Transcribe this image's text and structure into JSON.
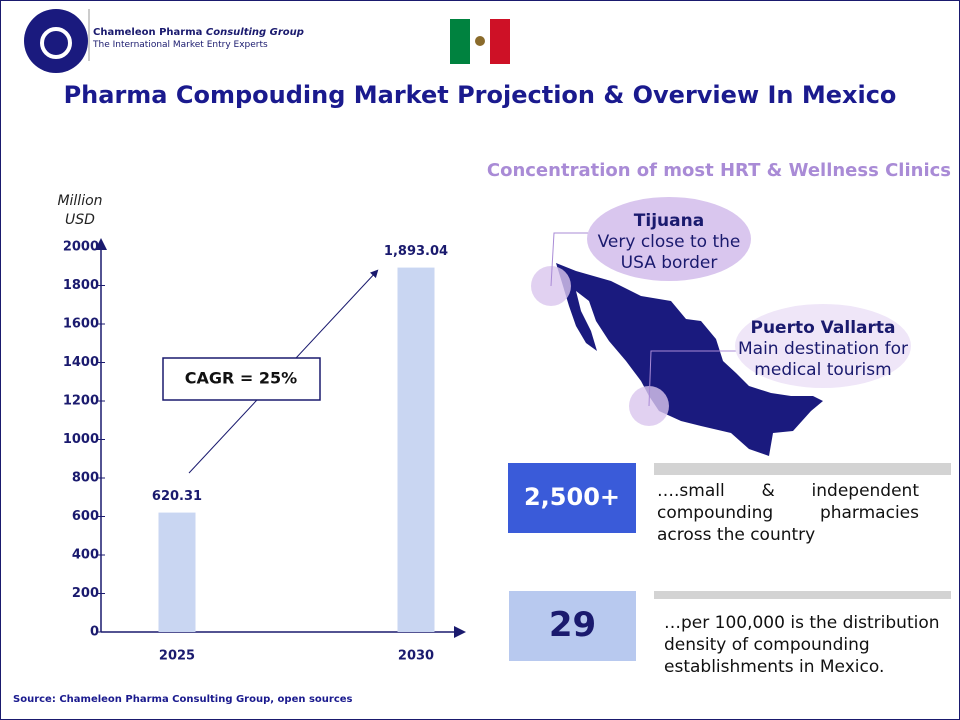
{
  "header": {
    "company": "Chameleon Pharma",
    "company_suffix": "Consulting Group",
    "tagline": "The International Market Entry Experts",
    "title": "Pharma Compouding Market Projection & Overview In Mexico"
  },
  "chart_data": {
    "type": "bar",
    "y_label": "Million USD",
    "categories": [
      "2025",
      "2030"
    ],
    "values": [
      620.31,
      1893.04
    ],
    "value_labels": [
      "620.31",
      "1,893.04"
    ],
    "color": "#c9d6f2",
    "ylim": [
      0,
      2000
    ],
    "yticks": [
      0,
      200,
      400,
      600,
      800,
      1000,
      1200,
      1400,
      1600,
      1800,
      2000
    ],
    "annotation": "CAGR = 25%"
  },
  "map": {
    "title": "Concentration of most HRT & Wellness Clinics",
    "callouts": [
      {
        "name": "Tijuana",
        "text": "Very close to the USA border"
      },
      {
        "name": "Puerto Vallarta",
        "text": "Main destination for medical tourism"
      }
    ]
  },
  "stats": [
    {
      "value": "2,500+",
      "text": "….small & independent compounding pharmacies across the country"
    },
    {
      "value": "29",
      "text": "…per 100,000 is the distribution density of compounding establishments in Mexico."
    }
  ],
  "source": "Source: Chameleon Pharma Consulting Group, open sources"
}
